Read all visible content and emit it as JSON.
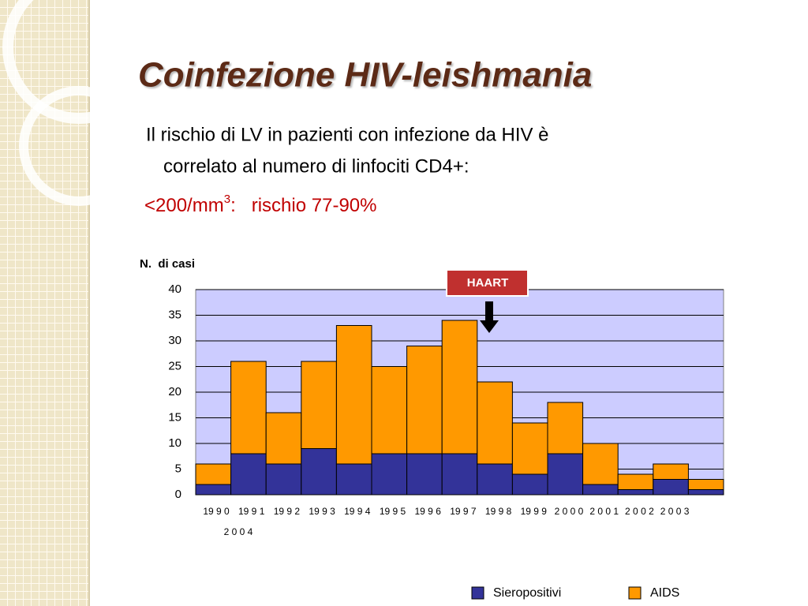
{
  "title": "Coinfezione HIV-leishmania",
  "body": {
    "line1": "Il rischio di LV in pazienti con infezione da HIV è",
    "line2": "correlato al numero di linfociti CD4+:",
    "highlight": {
      "text": "<200/mm",
      "sup": "3",
      "rest": ":   rischio 77-90%"
    }
  },
  "chart_data": {
    "type": "bar",
    "stacked": true,
    "ylabel": "N.  di casi",
    "annotation": "HAART",
    "categories": [
      "19 9 0",
      "19 9 1",
      "19 9 2",
      "19 9 3",
      "19 9 4",
      "19 9 5",
      "19 9 6",
      "19 9 7",
      "19 9 8",
      "19 9 9",
      "2 0 0 0",
      "2 0 0 1",
      "2 0 0 2",
      "2 0 0 3",
      "2 0 0 4"
    ],
    "series": [
      {
        "name": "Sieropositivi",
        "color": "#333399",
        "values": [
          2,
          8,
          6,
          9,
          6,
          8,
          8,
          8,
          6,
          4,
          8,
          2,
          1,
          3,
          1
        ]
      },
      {
        "name": "AIDS",
        "color": "#ff9900",
        "values": [
          4,
          18,
          10,
          17,
          27,
          17,
          21,
          26,
          16,
          10,
          10,
          8,
          3,
          3,
          2
        ]
      }
    ],
    "ylim": [
      0,
      40
    ],
    "yticks": [
      0,
      5,
      10,
      15,
      20,
      25,
      30,
      35,
      40
    ],
    "grid": true,
    "plot_background": "#ccccff",
    "legend": "bottom"
  }
}
